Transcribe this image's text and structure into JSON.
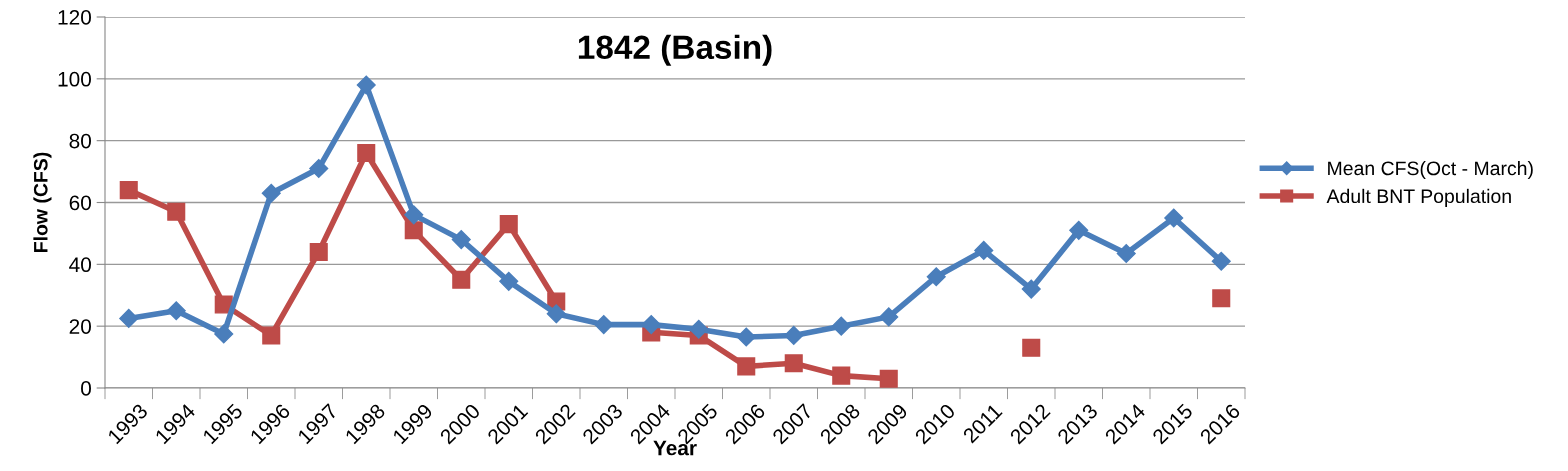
{
  "chart_data": {
    "type": "line",
    "title": "1842 (Basin)",
    "xlabel": "Year",
    "ylabel": "Flow (CFS)",
    "categories": [
      "1993",
      "1994",
      "1995",
      "1996",
      "1997",
      "1998",
      "1999",
      "2000",
      "2001",
      "2002",
      "2003",
      "2004",
      "2005",
      "2006",
      "2007",
      "2008",
      "2009",
      "2010",
      "2011",
      "2012",
      "2013",
      "2014",
      "2015",
      "2016"
    ],
    "series": [
      {
        "name": "Mean CFS(Oct - March)",
        "color": "#4a7ebb",
        "marker": "diamond",
        "values": [
          22.5,
          25,
          17.5,
          63,
          71,
          98,
          56,
          48,
          34.5,
          24,
          20.5,
          20.5,
          19,
          16.5,
          17,
          20,
          23,
          36,
          44.5,
          32,
          51,
          43.5,
          55,
          41
        ]
      },
      {
        "name": "Adult BNT Population",
        "color": "#be4b48",
        "marker": "square",
        "values": [
          64,
          57,
          27,
          17,
          44,
          76,
          51,
          35,
          53,
          28,
          null,
          18,
          17,
          7,
          8,
          4,
          3,
          null,
          null,
          13,
          null,
          null,
          null,
          29
        ]
      }
    ],
    "ylim": [
      0,
      120
    ],
    "yticks": [
      0,
      20,
      40,
      60,
      80,
      100,
      120
    ],
    "grid": "y",
    "legend": "right",
    "line_style": "solid"
  }
}
